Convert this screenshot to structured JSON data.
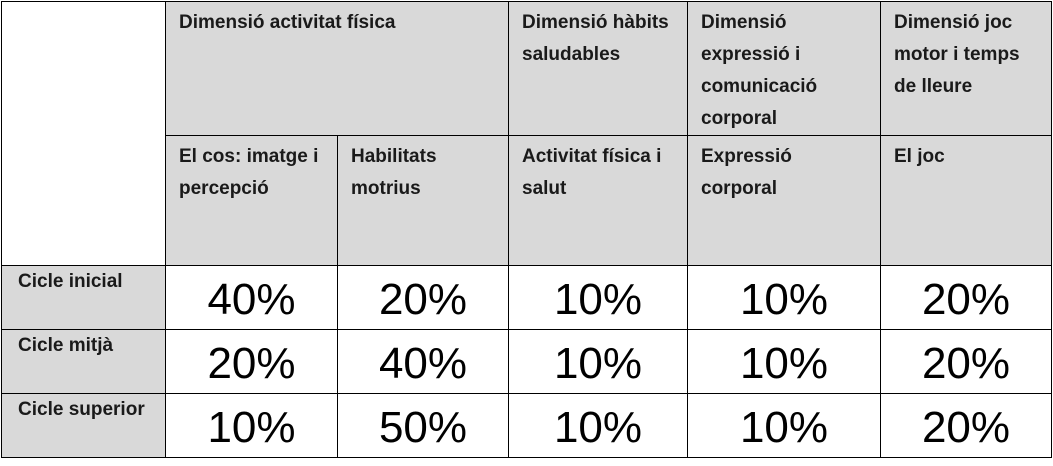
{
  "dimensions": [
    "Dimensió activitat física",
    "Dimensió hàbits saludables",
    "Dimensió expressió i comunicació corporal",
    "Dimensió joc motor i temps de lleure"
  ],
  "subheaders": [
    "El cos: imatge i percepció",
    "Habilitats motrius",
    "Activitat física i salut",
    "Expressió corporal",
    "El joc"
  ],
  "rows": [
    {
      "label": "Cicle inicial",
      "values": [
        "40%",
        "20%",
        "10%",
        "10%",
        "20%"
      ]
    },
    {
      "label": "Cicle mitjà",
      "values": [
        "20%",
        "40%",
        "10%",
        "10%",
        "20%"
      ]
    },
    {
      "label": "Cicle superior",
      "values": [
        "10%",
        "50%",
        "10%",
        "10%",
        "20%"
      ]
    }
  ]
}
